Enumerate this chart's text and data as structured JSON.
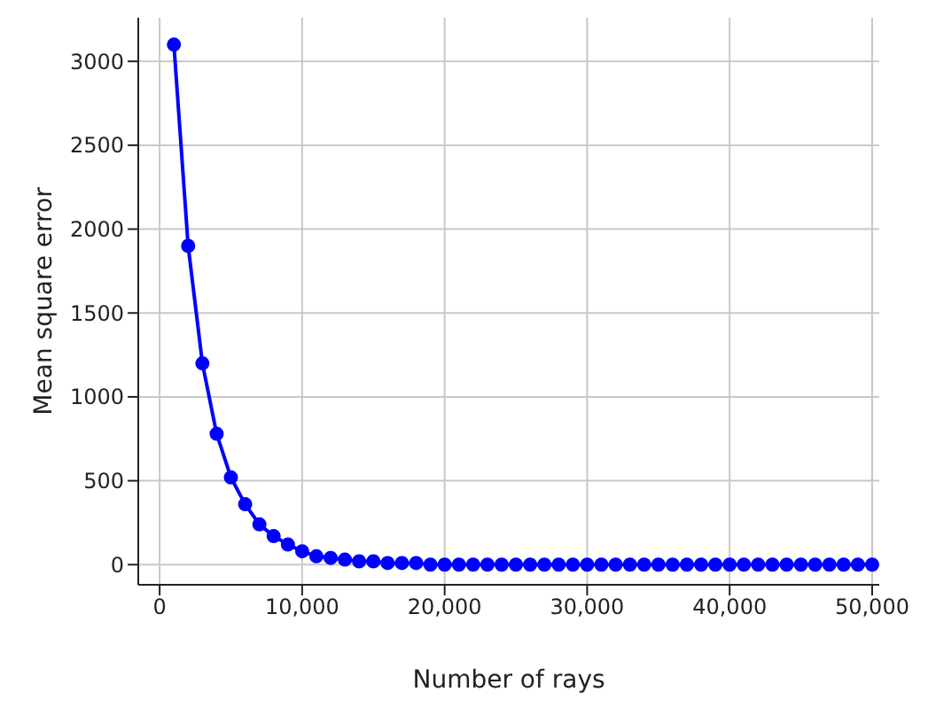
{
  "chart_data": {
    "type": "line",
    "xlabel": "Number of rays",
    "ylabel": "Mean square error",
    "x": [
      1000,
      2000,
      3000,
      4000,
      5000,
      6000,
      7000,
      8000,
      9000,
      10000,
      11000,
      12000,
      13000,
      14000,
      15000,
      16000,
      17000,
      18000,
      19000,
      20000,
      21000,
      22000,
      23000,
      24000,
      25000,
      26000,
      27000,
      28000,
      29000,
      30000,
      31000,
      32000,
      33000,
      34000,
      35000,
      36000,
      37000,
      38000,
      39000,
      40000,
      41000,
      42000,
      43000,
      44000,
      45000,
      46000,
      47000,
      48000,
      49000,
      50000
    ],
    "series": [
      {
        "color": "#0000ff",
        "values": [
          3100,
          1900,
          1200,
          780,
          520,
          360,
          240,
          170,
          120,
          80,
          50,
          40,
          30,
          20,
          20,
          10,
          10,
          10,
          0,
          0,
          0,
          0,
          0,
          0,
          0,
          0,
          0,
          0,
          0,
          0,
          0,
          0,
          0,
          0,
          0,
          0,
          0,
          0,
          0,
          0,
          0,
          0,
          0,
          0,
          0,
          0,
          0,
          0,
          0,
          0
        ]
      }
    ],
    "xlim": [
      -1500,
      50500
    ],
    "ylim": [
      -120,
      3260
    ],
    "xticks": [
      0,
      {
        "value": 10000,
        "label": "10,000"
      },
      {
        "value": 20000,
        "label": "20,000"
      },
      {
        "value": 30000,
        "label": "30,000"
      },
      {
        "value": 40000,
        "label": "40,000"
      },
      {
        "value": 50000,
        "label": "50,000"
      }
    ],
    "yticks": [
      0,
      500,
      1000,
      1500,
      2000,
      2500,
      3000
    ],
    "grid": true,
    "marker": "circle",
    "line_style": "solid"
  }
}
